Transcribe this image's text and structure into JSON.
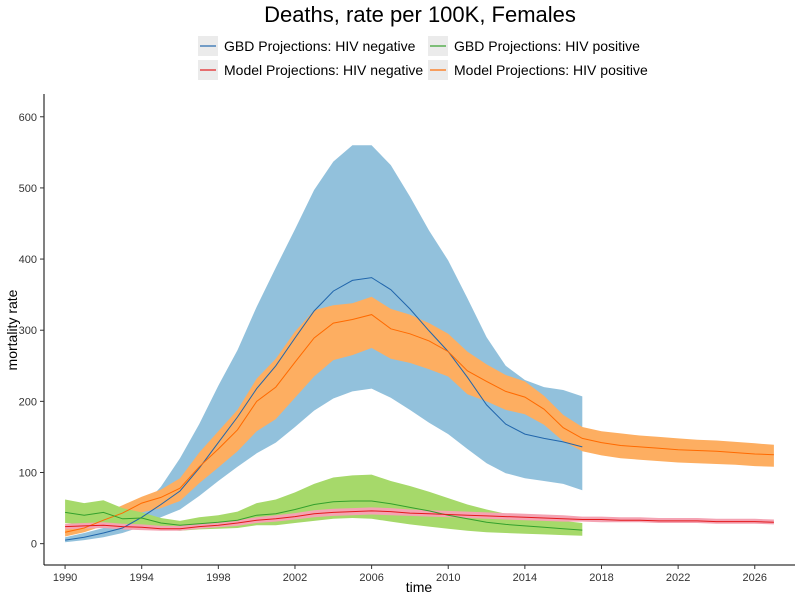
{
  "chart_data": {
    "type": "line",
    "title": "Deaths, rate per 100K, Females",
    "xlabel": "time",
    "ylabel": "mortality rate",
    "xlim": [
      1988.9,
      2028.1
    ],
    "ylim": [
      -30,
      632
    ],
    "x_ticks": [
      1990,
      1994,
      1998,
      2002,
      2006,
      2010,
      2014,
      2018,
      2022,
      2026
    ],
    "y_ticks": [
      0,
      100,
      200,
      300,
      400,
      500,
      600
    ],
    "grid": false,
    "legend_position": "top",
    "series": [
      {
        "name": "GBD Projections: HIV negative",
        "line_color": "#2166ac",
        "band_color": "#92c1dc",
        "x": [
          1990,
          1991,
          1992,
          1993,
          1994,
          1995,
          1996,
          1997,
          1998,
          1999,
          2000,
          2001,
          2002,
          2003,
          2004,
          2005,
          2006,
          2007,
          2008,
          2009,
          2010,
          2011,
          2012,
          2013,
          2014,
          2015,
          2016,
          2017
        ],
        "values": [
          5,
          9,
          15,
          22,
          37,
          55,
          74,
          106,
          142,
          178,
          218,
          250,
          289,
          327,
          355,
          370,
          374,
          357,
          330,
          299,
          270,
          234,
          195,
          168,
          154,
          148,
          143,
          136
        ],
        "lower": [
          2,
          5,
          9,
          15,
          24,
          37,
          48,
          67,
          88,
          108,
          127,
          142,
          164,
          187,
          204,
          214,
          218,
          205,
          188,
          170,
          154,
          133,
          113,
          99,
          92,
          88,
          84,
          75
        ],
        "upper": [
          9,
          15,
          22,
          31,
          51,
          80,
          120,
          168,
          222,
          272,
          333,
          388,
          442,
          497,
          537,
          560,
          560,
          532,
          488,
          440,
          398,
          345,
          290,
          250,
          230,
          220,
          216,
          207
        ]
      },
      {
        "name": "GBD Projections: HIV positive",
        "line_color": "#33a02c",
        "band_color": "#a6d96a",
        "x": [
          1990,
          1991,
          1992,
          1993,
          1994,
          1995,
          1996,
          1997,
          1998,
          1999,
          2000,
          2001,
          2002,
          2003,
          2004,
          2005,
          2006,
          2007,
          2008,
          2009,
          2010,
          2011,
          2012,
          2013,
          2014,
          2015,
          2016,
          2017
        ],
        "values": [
          44,
          40,
          44,
          35,
          36,
          29,
          26,
          28,
          30,
          33,
          40,
          42,
          48,
          55,
          59,
          60,
          60,
          56,
          51,
          46,
          40,
          35,
          30,
          27,
          25,
          23,
          21,
          19
        ],
        "lower": [
          29,
          27,
          28,
          23,
          22,
          20,
          18,
          20,
          21,
          22,
          26,
          26,
          29,
          32,
          35,
          36,
          35,
          31,
          27,
          24,
          21,
          18,
          16,
          15,
          14,
          13,
          12,
          11
        ],
        "upper": [
          62,
          57,
          61,
          50,
          44,
          36,
          32,
          37,
          40,
          45,
          57,
          62,
          72,
          84,
          93,
          96,
          97,
          88,
          81,
          73,
          64,
          55,
          48,
          42,
          38,
          35,
          32,
          29
        ]
      },
      {
        "name": "Model Projections: HIV negative",
        "line_color": "#e31a1c",
        "band_color": "#f4a3b3",
        "x": [
          1990,
          1991,
          1992,
          1993,
          1994,
          1995,
          1996,
          1997,
          1998,
          1999,
          2000,
          2001,
          2002,
          2003,
          2004,
          2005,
          2006,
          2007,
          2008,
          2009,
          2010,
          2011,
          2012,
          2013,
          2014,
          2015,
          2016,
          2017,
          2018,
          2019,
          2020,
          2021,
          2022,
          2023,
          2024,
          2025,
          2026,
          2027
        ],
        "values": [
          24,
          25,
          26,
          24,
          23,
          21,
          21,
          24,
          26,
          29,
          33,
          35,
          38,
          42,
          44,
          45,
          46,
          45,
          43,
          42,
          41,
          40,
          39,
          38,
          37,
          36,
          35,
          34,
          34,
          33,
          33,
          32,
          32,
          32,
          31,
          31,
          31,
          30
        ],
        "lower": [
          20,
          21,
          22,
          20,
          19,
          18,
          18,
          21,
          23,
          25,
          29,
          31,
          34,
          37,
          39,
          40,
          41,
          40,
          39,
          38,
          37,
          36,
          35,
          34,
          33,
          32,
          31,
          31,
          30,
          30,
          30,
          29,
          29,
          29,
          28,
          28,
          28,
          27
        ],
        "upper": [
          28,
          29,
          30,
          28,
          27,
          25,
          25,
          28,
          30,
          33,
          37,
          40,
          43,
          47,
          49,
          50,
          51,
          50,
          48,
          47,
          46,
          45,
          44,
          43,
          42,
          41,
          40,
          38,
          38,
          37,
          37,
          36,
          36,
          36,
          35,
          35,
          35,
          34
        ]
      },
      {
        "name": "Model Projections: HIV positive",
        "line_color": "#ff6a00",
        "band_color": "#fdae61",
        "x": [
          1990,
          1991,
          1992,
          1993,
          1994,
          1995,
          1996,
          1997,
          1998,
          1999,
          2000,
          2001,
          2002,
          2003,
          2004,
          2005,
          2006,
          2007,
          2008,
          2009,
          2010,
          2011,
          2012,
          2013,
          2014,
          2015,
          2016,
          2017,
          2018,
          2019,
          2020,
          2021,
          2022,
          2023,
          2024,
          2025,
          2026,
          2027
        ],
        "values": [
          16,
          22,
          33,
          43,
          57,
          65,
          78,
          108,
          133,
          160,
          200,
          220,
          255,
          289,
          310,
          315,
          322,
          302,
          295,
          285,
          270,
          243,
          228,
          214,
          206,
          189,
          163,
          148,
          142,
          138,
          136,
          134,
          132,
          131,
          130,
          128,
          126,
          125
        ],
        "lower": [
          10,
          16,
          25,
          33,
          44,
          50,
          60,
          85,
          107,
          130,
          158,
          175,
          205,
          235,
          258,
          265,
          275,
          260,
          254,
          245,
          235,
          210,
          200,
          188,
          182,
          167,
          144,
          130,
          124,
          120,
          118,
          116,
          114,
          113,
          112,
          111,
          109,
          108
        ],
        "upper": [
          22,
          30,
          42,
          54,
          66,
          76,
          92,
          128,
          158,
          188,
          232,
          260,
          298,
          328,
          335,
          338,
          347,
          330,
          322,
          310,
          295,
          270,
          252,
          237,
          228,
          208,
          181,
          164,
          158,
          155,
          152,
          150,
          148,
          146,
          145,
          143,
          141,
          139
        ]
      }
    ]
  },
  "legend": {
    "items": [
      {
        "label": "GBD Projections: HIV negative",
        "color": "#2166ac"
      },
      {
        "label": "GBD Projections: HIV positive",
        "color": "#33a02c"
      },
      {
        "label": "Model Projections: HIV negative",
        "color": "#e31a1c"
      },
      {
        "label": "Model Projections: HIV positive",
        "color": "#ff6a00"
      }
    ]
  }
}
